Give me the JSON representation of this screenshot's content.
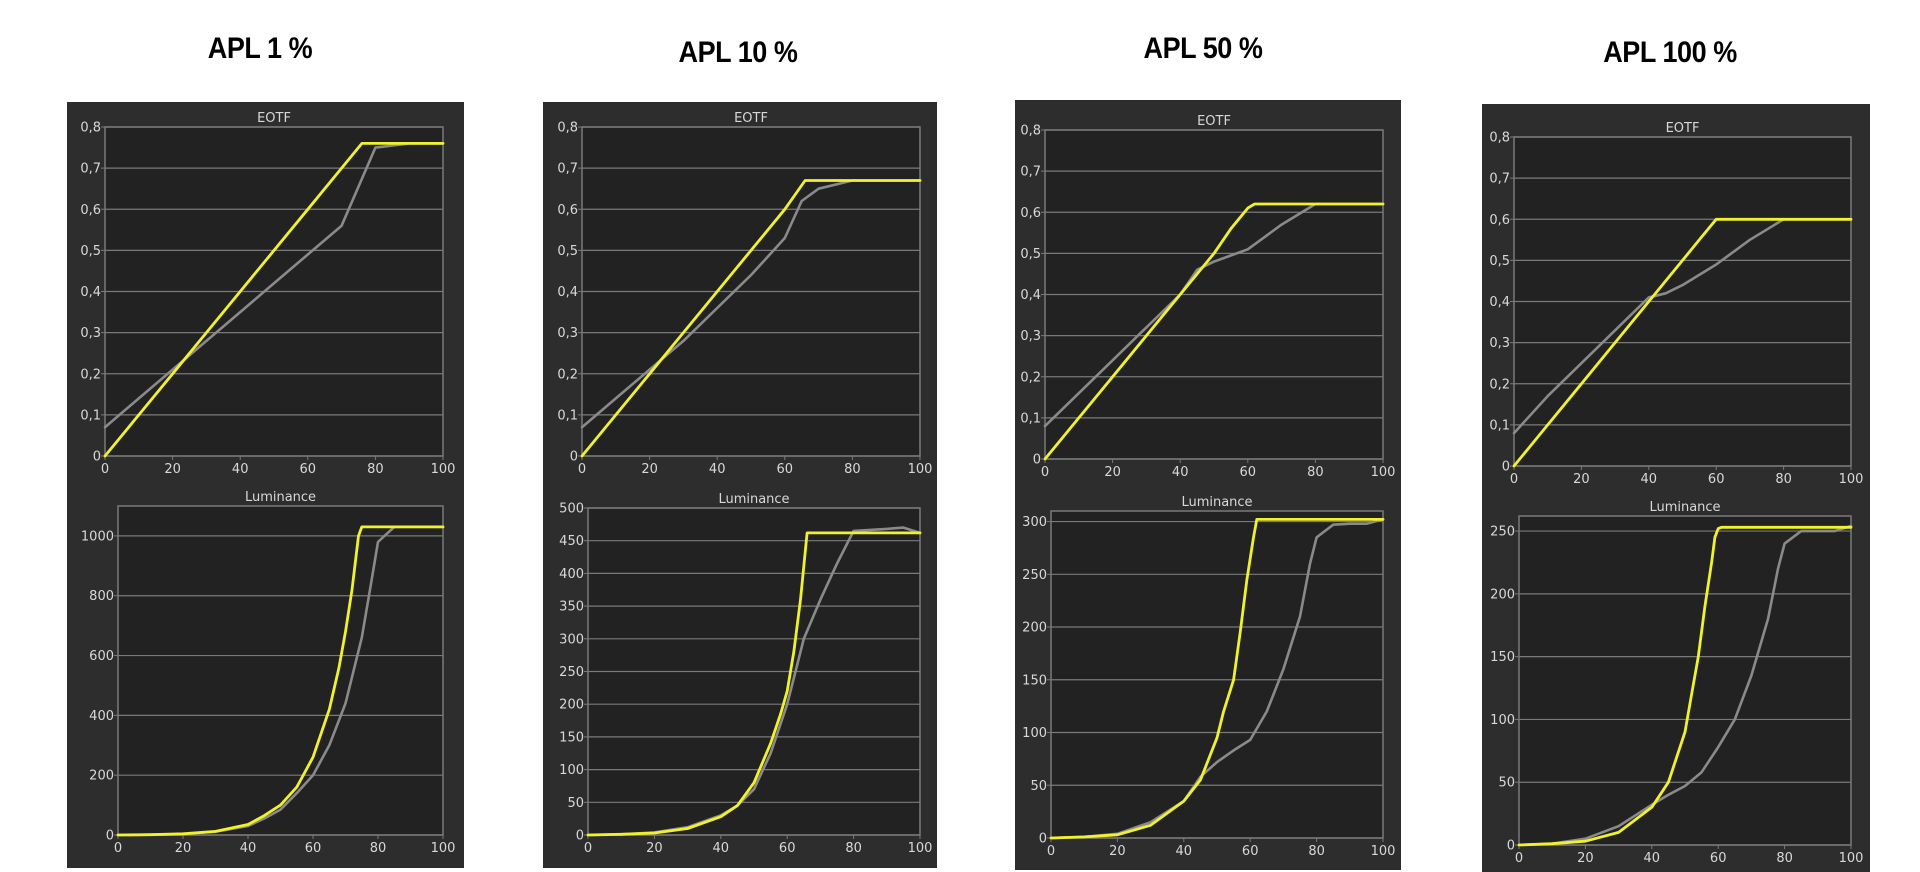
{
  "colors": {
    "panel": "#2d2d2d",
    "plot": "#222222",
    "grid": "#7a7a7a",
    "axis_text": "#d8d8d8",
    "measured": "#f2f22a",
    "target": "#8a8a8a"
  },
  "columns": [
    {
      "title": "APL 1 %"
    },
    {
      "title": "APL 10 %"
    },
    {
      "title": "APL 50 %"
    },
    {
      "title": "APL 100 %"
    }
  ],
  "chart_data": [
    {
      "type": "line",
      "title": "EOTF",
      "xlim": [
        0,
        100
      ],
      "ylim": [
        0,
        0.8
      ],
      "xticks": [
        0,
        20,
        40,
        60,
        80,
        100
      ],
      "yticks": [
        0,
        0.1,
        0.2,
        0.3,
        0.4,
        0.5,
        0.6,
        0.7,
        0.8
      ],
      "ytick_labels": [
        "0",
        "0,1",
        "0,2",
        "0,3",
        "0,4",
        "0,5",
        "0,6",
        "0,7",
        "0,8"
      ],
      "series": [
        {
          "color": "#8a8a8a",
          "x": [
            0,
            10,
            20,
            30,
            40,
            50,
            60,
            70,
            80,
            90,
            100
          ],
          "y": [
            0.07,
            0.14,
            0.21,
            0.28,
            0.35,
            0.42,
            0.49,
            0.56,
            0.75,
            0.76,
            0.76
          ]
        },
        {
          "color": "#f2f22a",
          "x": [
            0,
            10,
            20,
            30,
            40,
            50,
            60,
            70,
            76,
            80,
            90,
            100
          ],
          "y": [
            0,
            0.1,
            0.2,
            0.3,
            0.4,
            0.5,
            0.6,
            0.7,
            0.76,
            0.76,
            0.76,
            0.76
          ]
        }
      ]
    },
    {
      "type": "line",
      "title": "EOTF",
      "xlim": [
        0,
        100
      ],
      "ylim": [
        0,
        0.8
      ],
      "xticks": [
        0,
        20,
        40,
        60,
        80,
        100
      ],
      "yticks": [
        0,
        0.1,
        0.2,
        0.3,
        0.4,
        0.5,
        0.6,
        0.7,
        0.8
      ],
      "ytick_labels": [
        "0",
        "0,1",
        "0,2",
        "0,3",
        "0,4",
        "0,5",
        "0,6",
        "0,7",
        "0,8"
      ],
      "series": [
        {
          "color": "#8a8a8a",
          "x": [
            0,
            10,
            20,
            30,
            40,
            50,
            60,
            65,
            70,
            80,
            90,
            100
          ],
          "y": [
            0.07,
            0.14,
            0.21,
            0.28,
            0.36,
            0.44,
            0.53,
            0.62,
            0.65,
            0.67,
            0.67,
            0.67
          ]
        },
        {
          "color": "#f2f22a",
          "x": [
            0,
            10,
            20,
            30,
            40,
            50,
            60,
            66,
            70,
            80,
            90,
            100
          ],
          "y": [
            0,
            0.1,
            0.2,
            0.3,
            0.4,
            0.5,
            0.6,
            0.67,
            0.67,
            0.67,
            0.67,
            0.67
          ]
        }
      ]
    },
    {
      "type": "line",
      "title": "EOTF",
      "xlim": [
        0,
        100
      ],
      "ylim": [
        0,
        0.8
      ],
      "xticks": [
        0,
        20,
        40,
        60,
        80,
        100
      ],
      "yticks": [
        0,
        0.1,
        0.2,
        0.3,
        0.4,
        0.5,
        0.6,
        0.7,
        0.8
      ],
      "ytick_labels": [
        "0",
        "0,1",
        "0,2",
        "0,3",
        "0,4",
        "0,5",
        "0,6",
        "0,7",
        "0,8"
      ],
      "series": [
        {
          "color": "#8a8a8a",
          "x": [
            0,
            10,
            20,
            30,
            40,
            45,
            50,
            60,
            70,
            80,
            90,
            100
          ],
          "y": [
            0.08,
            0.16,
            0.24,
            0.32,
            0.4,
            0.46,
            0.48,
            0.51,
            0.57,
            0.62,
            0.62,
            0.62
          ]
        },
        {
          "color": "#f2f22a",
          "x": [
            0,
            10,
            20,
            30,
            40,
            50,
            55,
            60,
            62,
            70,
            80,
            90,
            100
          ],
          "y": [
            0,
            0.1,
            0.2,
            0.3,
            0.4,
            0.5,
            0.56,
            0.61,
            0.62,
            0.62,
            0.62,
            0.62,
            0.62
          ]
        }
      ]
    },
    {
      "type": "line",
      "title": "EOTF",
      "xlim": [
        0,
        100
      ],
      "ylim": [
        0,
        0.8
      ],
      "xticks": [
        0,
        20,
        40,
        60,
        80,
        100
      ],
      "yticks": [
        0,
        0.1,
        0.2,
        0.3,
        0.4,
        0.5,
        0.6,
        0.7,
        0.8
      ],
      "ytick_labels": [
        "0",
        "0,1",
        "0,2",
        "0,3",
        "0,4",
        "0,5",
        "0,6",
        "0,7",
        "0,8"
      ],
      "series": [
        {
          "color": "#8a8a8a",
          "x": [
            0,
            10,
            20,
            30,
            40,
            45,
            50,
            60,
            70,
            80,
            90,
            100
          ],
          "y": [
            0.08,
            0.17,
            0.25,
            0.33,
            0.41,
            0.42,
            0.44,
            0.49,
            0.55,
            0.6,
            0.6,
            0.6
          ]
        },
        {
          "color": "#f2f22a",
          "x": [
            0,
            10,
            20,
            30,
            40,
            50,
            55,
            60,
            70,
            80,
            90,
            100
          ],
          "y": [
            0,
            0.1,
            0.2,
            0.3,
            0.4,
            0.5,
            0.55,
            0.6,
            0.6,
            0.6,
            0.6,
            0.6
          ]
        }
      ]
    },
    {
      "type": "line",
      "title": "Luminance",
      "xlim": [
        0,
        100
      ],
      "ylim": [
        0,
        1100
      ],
      "xticks": [
        0,
        20,
        40,
        60,
        80,
        100
      ],
      "yticks": [
        0,
        200,
        400,
        600,
        800,
        1000
      ],
      "series": [
        {
          "color": "#8a8a8a",
          "x": [
            0,
            10,
            20,
            30,
            40,
            45,
            50,
            55,
            60,
            65,
            70,
            75,
            78,
            80,
            85,
            90,
            95,
            100
          ],
          "y": [
            0,
            1,
            3,
            11,
            30,
            55,
            85,
            140,
            200,
            300,
            440,
            660,
            850,
            980,
            1030,
            1030,
            1030,
            1030
          ]
        },
        {
          "color": "#f2f22a",
          "x": [
            0,
            10,
            20,
            30,
            40,
            45,
            50,
            55,
            60,
            65,
            68,
            70,
            72,
            74,
            75,
            80,
            90,
            100
          ],
          "y": [
            0,
            1,
            4,
            12,
            35,
            65,
            100,
            160,
            260,
            420,
            560,
            680,
            820,
            1000,
            1030,
            1030,
            1030,
            1030
          ]
        }
      ]
    },
    {
      "type": "line",
      "title": "Luminance",
      "xlim": [
        0,
        100
      ],
      "ylim": [
        0,
        500
      ],
      "xticks": [
        0,
        20,
        40,
        60,
        80,
        100
      ],
      "yticks": [
        0,
        50,
        100,
        150,
        200,
        250,
        300,
        350,
        400,
        450,
        500
      ],
      "series": [
        {
          "color": "#8a8a8a",
          "x": [
            0,
            10,
            20,
            30,
            40,
            45,
            50,
            55,
            60,
            65,
            70,
            75,
            80,
            90,
            95,
            100
          ],
          "y": [
            0,
            1,
            4,
            12,
            30,
            45,
            70,
            125,
            200,
            300,
            360,
            415,
            465,
            468,
            470,
            462
          ]
        },
        {
          "color": "#f2f22a",
          "x": [
            0,
            10,
            20,
            30,
            40,
            45,
            50,
            55,
            58,
            60,
            62,
            64,
            66,
            70,
            80,
            90,
            100
          ],
          "y": [
            0,
            1,
            3,
            10,
            28,
            45,
            80,
            140,
            185,
            220,
            280,
            360,
            462,
            462,
            462,
            462,
            462
          ]
        }
      ]
    },
    {
      "type": "line",
      "title": "Luminance",
      "xlim": [
        0,
        100
      ],
      "ylim": [
        0,
        310
      ],
      "xticks": [
        0,
        20,
        40,
        60,
        80,
        100
      ],
      "yticks": [
        0,
        50,
        100,
        150,
        200,
        250,
        300
      ],
      "series": [
        {
          "color": "#8a8a8a",
          "x": [
            0,
            10,
            20,
            30,
            40,
            45,
            50,
            55,
            60,
            65,
            70,
            75,
            78,
            80,
            85,
            90,
            95,
            100
          ],
          "y": [
            0,
            1,
            4,
            15,
            35,
            58,
            72,
            83,
            93,
            120,
            160,
            210,
            260,
            285,
            297,
            298,
            298,
            302
          ]
        },
        {
          "color": "#f2f22a",
          "x": [
            0,
            10,
            20,
            30,
            40,
            45,
            50,
            52,
            55,
            57,
            59,
            61,
            62,
            70,
            80,
            90,
            100
          ],
          "y": [
            0,
            1,
            3,
            12,
            35,
            55,
            95,
            120,
            150,
            195,
            245,
            285,
            302,
            302,
            302,
            302,
            302
          ]
        }
      ]
    },
    {
      "type": "line",
      "title": "Luminance",
      "xlim": [
        0,
        100
      ],
      "ylim": [
        0,
        262
      ],
      "xticks": [
        0,
        20,
        40,
        60,
        80,
        100
      ],
      "yticks": [
        0,
        50,
        100,
        150,
        200,
        250
      ],
      "series": [
        {
          "color": "#8a8a8a",
          "x": [
            0,
            10,
            20,
            30,
            40,
            45,
            50,
            55,
            60,
            65,
            70,
            75,
            78,
            80,
            85,
            90,
            95,
            100
          ],
          "y": [
            0,
            1,
            5,
            15,
            32,
            40,
            47,
            58,
            78,
            100,
            135,
            180,
            220,
            240,
            250,
            250,
            250,
            254
          ]
        },
        {
          "color": "#f2f22a",
          "x": [
            0,
            10,
            20,
            30,
            40,
            45,
            50,
            52,
            54,
            56,
            58,
            59,
            60,
            61,
            62,
            70,
            80,
            90,
            100
          ],
          "y": [
            0,
            1,
            3,
            10,
            30,
            50,
            90,
            120,
            150,
            190,
            225,
            245,
            252,
            253,
            253,
            253,
            253,
            253,
            253
          ]
        }
      ]
    }
  ]
}
